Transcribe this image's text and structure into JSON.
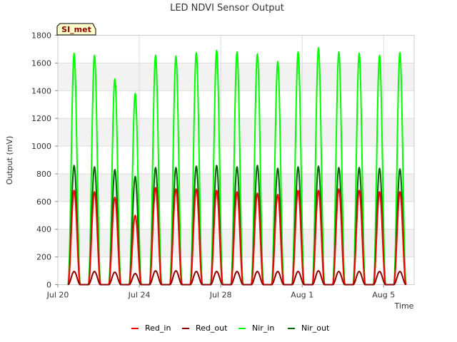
{
  "chart_data": {
    "type": "line",
    "title": "LED NDVI Sensor Output",
    "xlabel": "Time",
    "ylabel": "Output (mV)",
    "site_badge": "SI_met",
    "ylim": [
      0,
      1800
    ],
    "xlim": [
      0,
      17.5
    ],
    "yticks": [
      0,
      200,
      400,
      600,
      800,
      1000,
      1200,
      1400,
      1600,
      1800
    ],
    "xticks": [
      {
        "value": 0,
        "label": "Jul 20"
      },
      {
        "value": 4,
        "label": "Jul 24"
      },
      {
        "value": 8,
        "label": "Jul 28"
      },
      {
        "value": 12,
        "label": "Aug 1"
      },
      {
        "value": 16,
        "label": "Aug 5"
      }
    ],
    "peak_days": [
      0.8,
      1.8,
      2.8,
      3.8,
      4.8,
      5.8,
      6.8,
      7.8,
      8.8,
      9.8,
      10.8,
      11.8,
      12.8,
      13.8,
      14.8,
      15.8,
      16.8
    ],
    "day_halfwidth": 0.3,
    "series": [
      {
        "name": "Red_in",
        "color": "#ff0000",
        "peaks": [
          680,
          670,
          630,
          500,
          700,
          690,
          690,
          680,
          670,
          660,
          650,
          680,
          680,
          690,
          680,
          670,
          670
        ]
      },
      {
        "name": "Red_out",
        "color": "#8b0000",
        "peaks": [
          95,
          95,
          90,
          80,
          100,
          100,
          95,
          95,
          95,
          95,
          95,
          95,
          100,
          95,
          95,
          95,
          95
        ]
      },
      {
        "name": "Nir_in",
        "color": "#00ff00",
        "peaks": [
          1670,
          1655,
          1485,
          1380,
          1655,
          1650,
          1675,
          1690,
          1680,
          1665,
          1610,
          1680,
          1710,
          1680,
          1670,
          1655,
          1675
        ]
      },
      {
        "name": "Nir_out",
        "color": "#006400",
        "peaks": [
          860,
          850,
          830,
          780,
          845,
          845,
          855,
          860,
          850,
          860,
          840,
          850,
          855,
          845,
          845,
          840,
          835
        ]
      }
    ]
  }
}
